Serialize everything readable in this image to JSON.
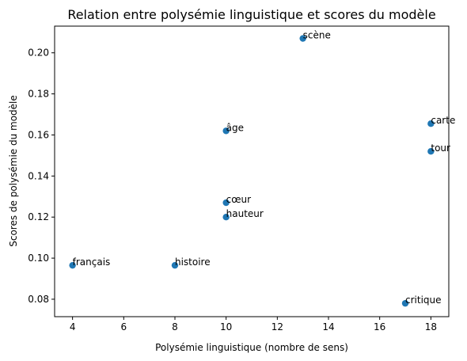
{
  "chart_data": {
    "type": "scatter",
    "title": "Relation entre polysémie linguistique et scores du modèle",
    "xlabel": "Polysémie linguistique (nombre de sens)",
    "ylabel": "Scores de polysémie du modèle",
    "xlim": [
      3.3,
      18.7
    ],
    "ylim": [
      0.0715,
      0.213
    ],
    "xticks": [
      4,
      6,
      8,
      10,
      12,
      14,
      16,
      18
    ],
    "yticks": [
      0.08,
      0.1,
      0.12,
      0.14,
      0.16,
      0.18,
      0.2
    ],
    "xtick_labels": [
      "4",
      "6",
      "8",
      "10",
      "12",
      "14",
      "16",
      "18"
    ],
    "ytick_labels": [
      "0.08",
      "0.10",
      "0.12",
      "0.14",
      "0.16",
      "0.18",
      "0.20"
    ],
    "grid": false,
    "marker_color": "#1f77b4",
    "points": [
      {
        "label": "français",
        "x": 4,
        "y": 0.0965
      },
      {
        "label": "histoire",
        "x": 8,
        "y": 0.0965
      },
      {
        "label": "hauteur",
        "x": 10,
        "y": 0.12
      },
      {
        "label": "cœur",
        "x": 10,
        "y": 0.127
      },
      {
        "label": "âge",
        "x": 10,
        "y": 0.162
      },
      {
        "label": "scène",
        "x": 13,
        "y": 0.207
      },
      {
        "label": "critique",
        "x": 17,
        "y": 0.078
      },
      {
        "label": "tour",
        "x": 18,
        "y": 0.152
      },
      {
        "label": "carte",
        "x": 18,
        "y": 0.1655
      }
    ]
  }
}
